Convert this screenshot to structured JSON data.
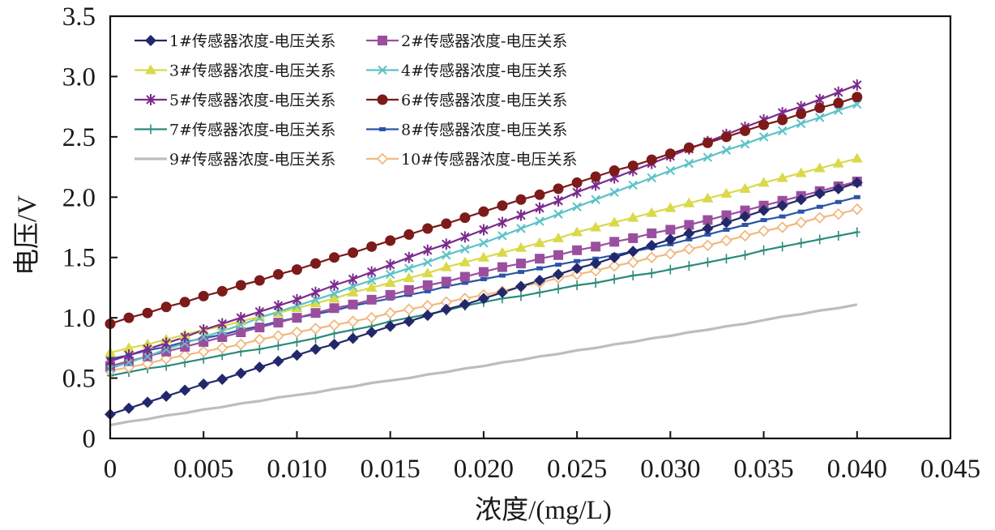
{
  "chart_data": {
    "type": "line",
    "title": "",
    "xlabel": "浓度/(mg/L)",
    "ylabel": "电压/V",
    "xlim": [
      0,
      0.045
    ],
    "ylim": [
      0,
      3.5
    ],
    "x_ticks": [
      "0",
      "0.005",
      "0.010",
      "0.015",
      "0.020",
      "0.025",
      "0.030",
      "0.035",
      "0.040",
      "0.045"
    ],
    "x_tick_values": [
      0,
      0.005,
      0.01,
      0.015,
      0.02,
      0.025,
      0.03,
      0.035,
      0.04,
      0.045
    ],
    "y_ticks": [
      "0",
      "0.5",
      "1.0",
      "1.5",
      "2.0",
      "2.5",
      "3.0",
      "3.5"
    ],
    "y_tick_values": [
      0,
      0.5,
      1.0,
      1.5,
      2.0,
      2.5,
      3.0,
      3.5
    ],
    "grid": false,
    "legend_position": "top-left",
    "x": [
      0,
      0.001,
      0.002,
      0.003,
      0.004,
      0.005,
      0.006,
      0.007,
      0.008,
      0.009,
      0.01,
      0.011,
      0.012,
      0.013,
      0.014,
      0.015,
      0.016,
      0.017,
      0.018,
      0.019,
      0.02,
      0.021,
      0.022,
      0.023,
      0.024,
      0.025,
      0.026,
      0.027,
      0.028,
      0.029,
      0.03,
      0.031,
      0.032,
      0.033,
      0.034,
      0.035,
      0.036,
      0.037,
      0.038,
      0.039,
      0.04
    ],
    "series": [
      {
        "name": "1#传感器浓度-电压关系",
        "color": "#23286b",
        "marker": "diamond",
        "values": [
          0.2,
          0.25,
          0.3,
          0.35,
          0.4,
          0.45,
          0.49,
          0.54,
          0.59,
          0.64,
          0.69,
          0.74,
          0.78,
          0.83,
          0.88,
          0.93,
          0.97,
          1.02,
          1.07,
          1.11,
          1.16,
          1.21,
          1.26,
          1.31,
          1.36,
          1.41,
          1.45,
          1.5,
          1.55,
          1.6,
          1.65,
          1.7,
          1.74,
          1.79,
          1.84,
          1.89,
          1.93,
          1.98,
          2.03,
          2.07,
          2.12
        ]
      },
      {
        "name": "2#传感器浓度-电压关系",
        "color": "#9a4f9e",
        "marker": "square",
        "values": [
          0.6,
          0.64,
          0.68,
          0.72,
          0.76,
          0.8,
          0.84,
          0.88,
          0.92,
          0.96,
          1.0,
          1.04,
          1.08,
          1.11,
          1.15,
          1.19,
          1.23,
          1.27,
          1.3,
          1.34,
          1.38,
          1.42,
          1.45,
          1.49,
          1.52,
          1.56,
          1.59,
          1.63,
          1.66,
          1.7,
          1.73,
          1.77,
          1.81,
          1.85,
          1.89,
          1.93,
          1.97,
          2.01,
          2.05,
          2.09,
          2.13
        ]
      },
      {
        "name": "3#传感器浓度-电压关系",
        "color": "#d9d94a",
        "marker": "triangle",
        "values": [
          0.71,
          0.75,
          0.78,
          0.82,
          0.86,
          0.9,
          0.93,
          0.97,
          1.01,
          1.04,
          1.08,
          1.12,
          1.16,
          1.21,
          1.25,
          1.29,
          1.33,
          1.37,
          1.42,
          1.46,
          1.5,
          1.54,
          1.58,
          1.62,
          1.66,
          1.71,
          1.75,
          1.79,
          1.83,
          1.87,
          1.91,
          1.95,
          1.99,
          2.03,
          2.07,
          2.12,
          2.16,
          2.2,
          2.24,
          2.28,
          2.32
        ]
      },
      {
        "name": "4#传感器浓度-电压关系",
        "color": "#5bc2c7",
        "marker": "x",
        "values": [
          0.58,
          0.63,
          0.68,
          0.74,
          0.79,
          0.84,
          0.89,
          0.94,
          1.0,
          1.05,
          1.1,
          1.15,
          1.2,
          1.26,
          1.31,
          1.36,
          1.41,
          1.46,
          1.52,
          1.57,
          1.62,
          1.68,
          1.74,
          1.8,
          1.86,
          1.92,
          1.98,
          2.04,
          2.1,
          2.16,
          2.22,
          2.28,
          2.33,
          2.39,
          2.44,
          2.5,
          2.55,
          2.61,
          2.66,
          2.72,
          2.77
        ]
      },
      {
        "name": "5#传感器浓度-电压关系",
        "color": "#7a2a8c",
        "marker": "star",
        "values": [
          0.64,
          0.69,
          0.74,
          0.79,
          0.84,
          0.9,
          0.95,
          1.0,
          1.05,
          1.1,
          1.15,
          1.21,
          1.27,
          1.32,
          1.38,
          1.44,
          1.5,
          1.56,
          1.61,
          1.67,
          1.73,
          1.79,
          1.85,
          1.91,
          1.97,
          2.04,
          2.1,
          2.16,
          2.22,
          2.28,
          2.34,
          2.4,
          2.46,
          2.52,
          2.58,
          2.64,
          2.7,
          2.75,
          2.81,
          2.87,
          2.93
        ]
      },
      {
        "name": "6#传感器浓度-电压关系",
        "color": "#7d1a1a",
        "marker": "circle",
        "values": [
          0.95,
          1.0,
          1.04,
          1.09,
          1.13,
          1.18,
          1.22,
          1.27,
          1.31,
          1.36,
          1.4,
          1.45,
          1.5,
          1.54,
          1.59,
          1.64,
          1.69,
          1.74,
          1.78,
          1.83,
          1.88,
          1.93,
          1.98,
          2.02,
          2.07,
          2.12,
          2.17,
          2.22,
          2.26,
          2.31,
          2.36,
          2.41,
          2.45,
          2.5,
          2.55,
          2.6,
          2.64,
          2.69,
          2.74,
          2.78,
          2.83
        ]
      },
      {
        "name": "7#传感器浓度-电压关系",
        "color": "#2a8a7a",
        "marker": "plus",
        "values": [
          0.52,
          0.55,
          0.58,
          0.6,
          0.63,
          0.66,
          0.69,
          0.72,
          0.74,
          0.77,
          0.8,
          0.83,
          0.87,
          0.9,
          0.93,
          0.97,
          1.0,
          1.03,
          1.06,
          1.1,
          1.13,
          1.16,
          1.18,
          1.21,
          1.24,
          1.27,
          1.29,
          1.32,
          1.35,
          1.37,
          1.4,
          1.43,
          1.46,
          1.49,
          1.52,
          1.56,
          1.59,
          1.62,
          1.65,
          1.68,
          1.71
        ]
      },
      {
        "name": "8#传感器浓度-电压关系",
        "color": "#2a55a6",
        "marker": "dash",
        "values": [
          0.66,
          0.69,
          0.73,
          0.76,
          0.8,
          0.83,
          0.86,
          0.9,
          0.93,
          0.97,
          1.0,
          1.03,
          1.06,
          1.1,
          1.13,
          1.16,
          1.19,
          1.22,
          1.26,
          1.29,
          1.32,
          1.35,
          1.38,
          1.41,
          1.44,
          1.47,
          1.49,
          1.52,
          1.55,
          1.58,
          1.61,
          1.65,
          1.69,
          1.73,
          1.77,
          1.81,
          1.84,
          1.88,
          1.92,
          1.96,
          2.0
        ]
      },
      {
        "name": "9#传感器浓度-电压关系",
        "color": "#bdbdbd",
        "marker": "none",
        "values": [
          0.11,
          0.14,
          0.16,
          0.19,
          0.21,
          0.24,
          0.26,
          0.29,
          0.31,
          0.34,
          0.36,
          0.38,
          0.41,
          0.43,
          0.46,
          0.48,
          0.5,
          0.53,
          0.55,
          0.58,
          0.6,
          0.63,
          0.65,
          0.68,
          0.7,
          0.73,
          0.75,
          0.78,
          0.8,
          0.83,
          0.85,
          0.88,
          0.9,
          0.93,
          0.95,
          0.98,
          1.01,
          1.03,
          1.06,
          1.08,
          1.11
        ]
      },
      {
        "name": "10#传感器浓度-电压关系",
        "color": "#f2b880",
        "marker": "diamond-open",
        "values": [
          0.56,
          0.59,
          0.62,
          0.66,
          0.69,
          0.72,
          0.75,
          0.78,
          0.82,
          0.85,
          0.88,
          0.91,
          0.94,
          0.97,
          1.0,
          1.04,
          1.07,
          1.1,
          1.13,
          1.16,
          1.19,
          1.22,
          1.26,
          1.29,
          1.33,
          1.36,
          1.39,
          1.43,
          1.46,
          1.5,
          1.53,
          1.57,
          1.6,
          1.64,
          1.68,
          1.72,
          1.75,
          1.79,
          1.83,
          1.86,
          1.9
        ]
      }
    ]
  }
}
